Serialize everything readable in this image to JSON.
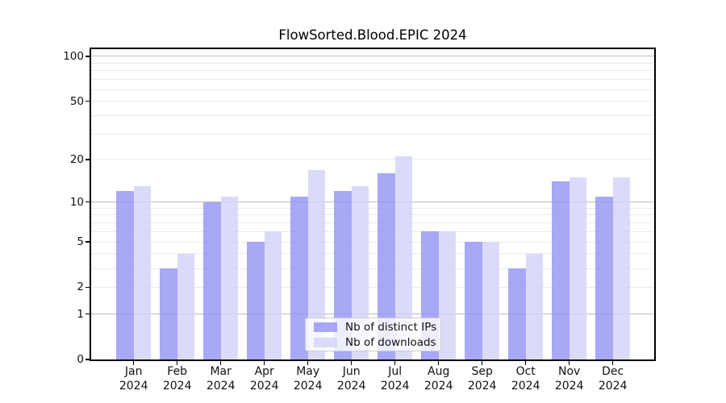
{
  "chart_data": {
    "type": "bar",
    "title": "FlowSorted.Blood.EPIC 2024",
    "scale": "log1p",
    "categories": [
      "Jan",
      "Feb",
      "Mar",
      "Apr",
      "May",
      "Jun",
      "Jul",
      "Aug",
      "Sep",
      "Oct",
      "Nov",
      "Dec"
    ],
    "year_label": "2024",
    "series": [
      {
        "name": "Nb of distinct IPs",
        "color": "#9292f5",
        "alpha": 0.8,
        "values": [
          12,
          3,
          10,
          5,
          11,
          12,
          16,
          6,
          5,
          3,
          14,
          11
        ]
      },
      {
        "name": "Nb of downloads",
        "color": "#d2d2f7",
        "alpha": 0.8,
        "values": [
          13,
          4,
          11,
          6,
          17,
          13,
          21,
          6,
          5,
          4,
          15,
          15
        ]
      }
    ],
    "yticks": [
      0,
      1,
      2,
      5,
      10,
      20,
      50,
      100
    ],
    "major_gridlines": [
      1,
      10,
      100
    ],
    "minor_gridlines": [
      2,
      3,
      4,
      5,
      6,
      7,
      8,
      9,
      20,
      30,
      40,
      50,
      60,
      70,
      80,
      90
    ],
    "ylim": [
      0,
      112
    ],
    "grid": true,
    "legend_position": "lower center",
    "bar_color_hint": "semi-transparent periwinkle bars; gridlines visible through bars"
  }
}
